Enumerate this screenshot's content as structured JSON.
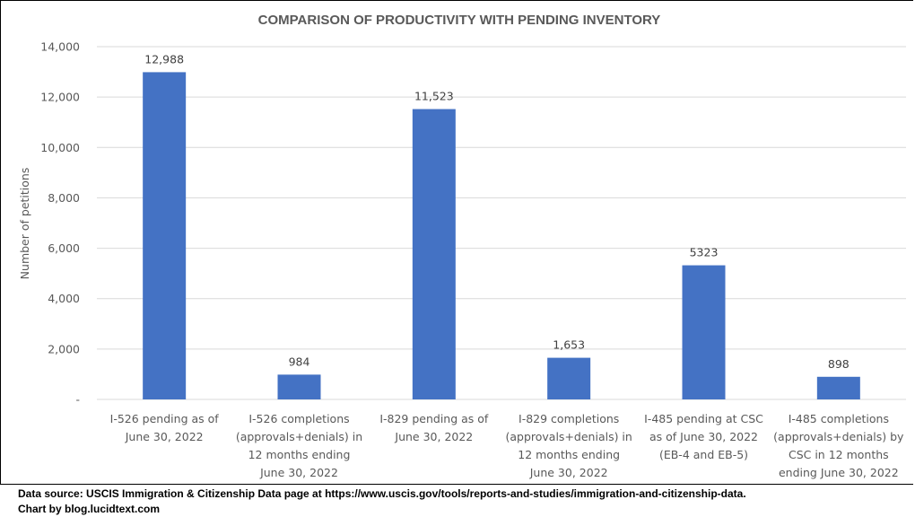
{
  "chart_data": {
    "type": "bar",
    "title": "COMPARISON OF PRODUCTIVITY  WITH PENDING INVENTORY",
    "xlabel": "",
    "ylabel": "Number of petitions",
    "ylim": [
      0,
      14000
    ],
    "yticks": [
      0,
      2000,
      4000,
      6000,
      8000,
      10000,
      12000,
      14000
    ],
    "ytick_labels": [
      "-",
      "2,000",
      "4,000",
      "6,000",
      "8,000",
      "10,000",
      "12,000",
      "14,000"
    ],
    "grid": true,
    "legend": "none",
    "bar_color": "#4472C4",
    "categories": [
      [
        "I-526 pending as of",
        "June 30, 2022"
      ],
      [
        "I-526 completions",
        "(approvals+denials) in",
        "12 months ending",
        "June 30, 2022"
      ],
      [
        "I-829 pending as of",
        "June 30, 2022"
      ],
      [
        "I-829 completions",
        "(approvals+denials) in",
        "12 months ending",
        "June 30, 2022"
      ],
      [
        "I-485 pending at CSC",
        "as of June 30, 2022",
        "(EB-4 and EB-5)"
      ],
      [
        "I-485 completions",
        "(approvals+denials) by",
        "CSC in 12 months",
        "ending June 30, 2022"
      ]
    ],
    "values": [
      12988,
      984,
      11523,
      1653,
      5323,
      898
    ],
    "data_labels": [
      "12,988",
      "984",
      "11,523",
      "1,653",
      "5323",
      "898"
    ]
  },
  "footer": {
    "source": "Data source: USCIS Immigration & Citizenship Data page at https://www.uscis.gov/tools/reports-and-studies/immigration-and-citizenship-data.",
    "credit": "Chart by blog.lucidtext.com"
  }
}
